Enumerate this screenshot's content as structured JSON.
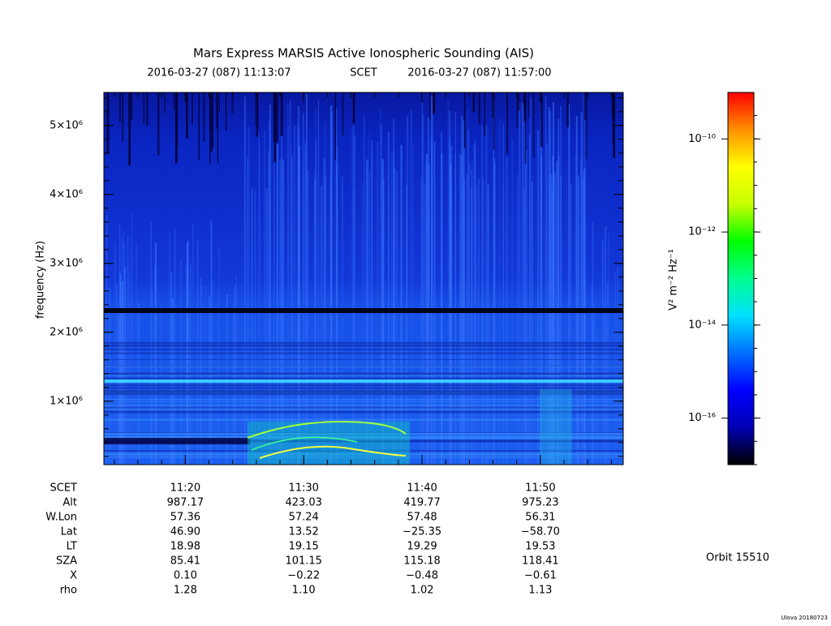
{
  "chart_data": {
    "type": "spectrogram",
    "title": "Mars Express MARSIS Active Ionospheric Sounding (AIS)",
    "subtitle": {
      "start": "2016-03-27 (087) 11:13:07",
      "label": "SCET",
      "end": "2016-03-27 (087) 11:57:00"
    },
    "y_label": "frequency (Hz)",
    "ylim": [
      80000,
      5480000
    ],
    "yticks": [
      {
        "value": 1000000,
        "label": "1×10⁶"
      },
      {
        "value": 2000000,
        "label": "2×10⁶"
      },
      {
        "value": 3000000,
        "label": "3×10⁶"
      },
      {
        "value": 4000000,
        "label": "4×10⁶"
      },
      {
        "value": 5000000,
        "label": "5×10⁶"
      }
    ],
    "xticks": [
      "11:20",
      "11:30",
      "11:40",
      "11:50"
    ],
    "colorbar": {
      "label": "V² m⁻² Hz⁻¹",
      "log_scale": true,
      "zlim": [
        1e-17,
        1e-09
      ],
      "zticks": [
        {
          "value": 1e-10,
          "label": "10⁻¹⁰"
        },
        {
          "value": 1e-12,
          "label": "10⁻¹²"
        },
        {
          "value": 1e-14,
          "label": "10⁻¹⁴"
        },
        {
          "value": 1e-16,
          "label": "10⁻¹⁶"
        }
      ],
      "colormap": [
        "#000000",
        "#0000b4",
        "#0000ff",
        "#0070ff",
        "#00e0ff",
        "#00ff90",
        "#00ff00",
        "#c8ff00",
        "#ffff00",
        "#ff9000",
        "#ff0000"
      ]
    },
    "ephemeris": {
      "time_label": "SCET",
      "rows": [
        {
          "label": "Alt",
          "values": [
            "987.17",
            "423.03",
            "419.77",
            "975.23"
          ]
        },
        {
          "label": "W.Lon",
          "values": [
            "57.36",
            "57.24",
            "57.48",
            "56.31"
          ]
        },
        {
          "label": "Lat",
          "values": [
            "46.90",
            "13.52",
            "−25.35",
            "−58.70"
          ]
        },
        {
          "label": "LT",
          "values": [
            "18.98",
            "19.15",
            "19.29",
            "19.53"
          ]
        },
        {
          "label": "SZA",
          "values": [
            "85.41",
            "101.15",
            "115.18",
            "118.41"
          ]
        },
        {
          "label": "X",
          "values": [
            "0.10",
            "−0.22",
            "−0.48",
            "−0.61"
          ]
        },
        {
          "label": "rho",
          "values": [
            "1.28",
            "1.10",
            "1.02",
            "1.13"
          ]
        }
      ]
    },
    "orbit": "Orbit 15510",
    "footer": "Ulova 20180723"
  }
}
